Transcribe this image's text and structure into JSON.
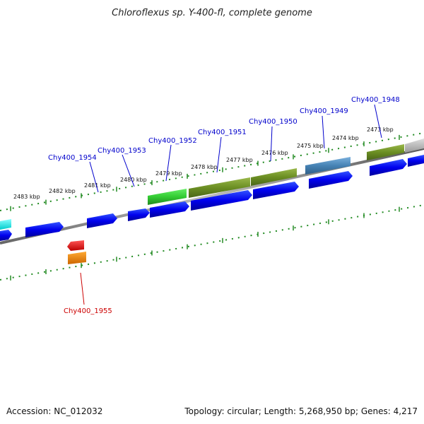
{
  "title": "Chloroflexus sp. Y-400-fl, complete genome",
  "footer": {
    "accession": "Accession: NC_012032",
    "summary": "Topology: circular; Length: 5,268,950 bp; Genes: 4,217"
  },
  "scale": {
    "unit": "kbp",
    "labels": [
      "2483 kbp",
      "2482 kbp",
      "2481 kbp",
      "2480 kbp",
      "2479 kbp",
      "2478 kbp",
      "2477 kbp",
      "2476 kbp",
      "2475 kbp",
      "2474 kbp",
      "2473 kbp"
    ]
  },
  "genes": [
    {
      "name": "Chy400_1954",
      "color": "#0000cc"
    },
    {
      "name": "Chy400_1953",
      "color": "#0000cc"
    },
    {
      "name": "Chy400_1952",
      "color": "#0000cc"
    },
    {
      "name": "Chy400_1951",
      "color": "#0000cc"
    },
    {
      "name": "Chy400_1950",
      "color": "#0000cc"
    },
    {
      "name": "Chy400_1949",
      "color": "#0000cc"
    },
    {
      "name": "Chy400_1948",
      "color": "#0000cc"
    },
    {
      "name": "Chy400_1955",
      "color": "#cc0000"
    }
  ],
  "colors": {
    "cds": "#0000ee",
    "green_feature": "#33cc33",
    "olive_feature": "#6b8e23",
    "steel_feature": "#4682b4",
    "cyan_feature": "#00dddd",
    "red_feature": "#ee0000",
    "orange_feature": "#ff8c00",
    "grey_feature": "#bbbbbb",
    "backbone": "#888888",
    "tick": "#228b22"
  }
}
